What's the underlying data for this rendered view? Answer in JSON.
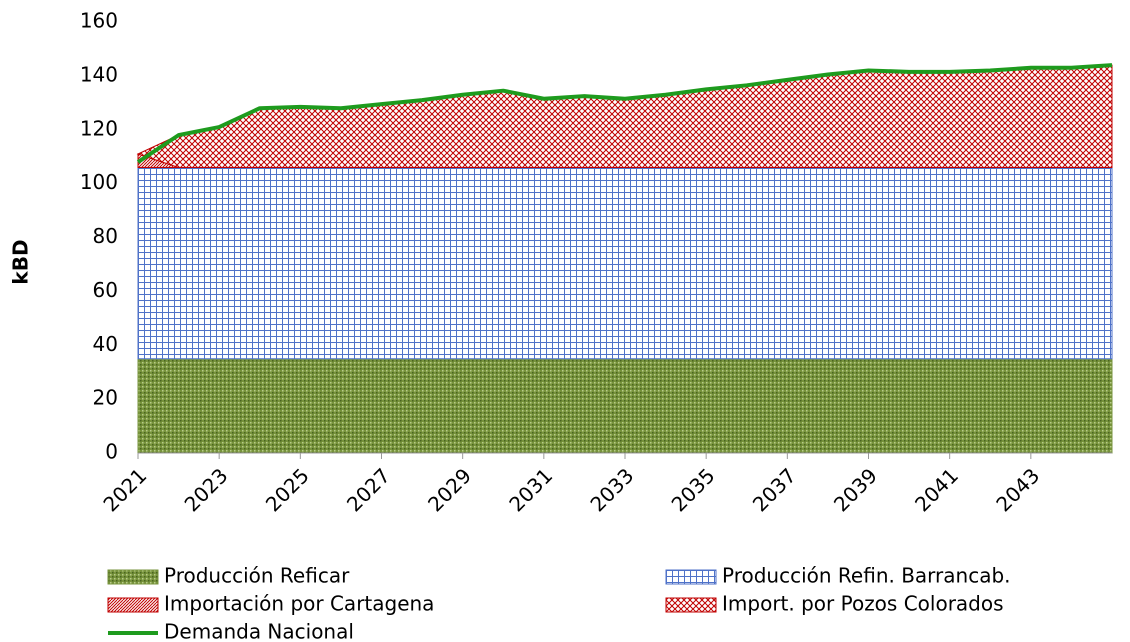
{
  "chart_data": {
    "type": "area",
    "stacked": true,
    "ylabel": "kBD",
    "x": [
      2021,
      2022,
      2023,
      2024,
      2025,
      2026,
      2027,
      2028,
      2029,
      2030,
      2031,
      2032,
      2033,
      2034,
      2035,
      2036,
      2037,
      2038,
      2039,
      2040,
      2041,
      2042,
      2043,
      2044,
      2045
    ],
    "xlim": [
      2021,
      2045
    ],
    "xticks": [
      2021,
      2023,
      2025,
      2027,
      2029,
      2031,
      2033,
      2035,
      2037,
      2039,
      2041,
      2043
    ],
    "ylim": [
      0,
      160
    ],
    "yticks": [
      0,
      20,
      40,
      60,
      80,
      100,
      120,
      140,
      160
    ],
    "grid": false,
    "legend": "bottom",
    "series": [
      {
        "name": "Producción Reficar",
        "color": "#77933c",
        "type": "area",
        "values": [
          35,
          35,
          35,
          35,
          35,
          35,
          35,
          35,
          35,
          35,
          35,
          35,
          35,
          35,
          35,
          35,
          35,
          35,
          35,
          35,
          35,
          35,
          35,
          35,
          35
        ]
      },
      {
        "name": "Producción Refin. Barrancab.",
        "color": "#4f72c8",
        "type": "area",
        "values": [
          71,
          71,
          71,
          71,
          71,
          71,
          71,
          71,
          71,
          71,
          71,
          71,
          71,
          71,
          71,
          71,
          71,
          71,
          71,
          71,
          71,
          71,
          71,
          71,
          71
        ]
      },
      {
        "name": "Importación por Cartagena",
        "color": "#c00000",
        "type": "area",
        "values": [
          5,
          0,
          0,
          0,
          0,
          0,
          0,
          0,
          0,
          0,
          0,
          0,
          0,
          0,
          0,
          0,
          0,
          0,
          0,
          0,
          0,
          0,
          0,
          0,
          0
        ]
      },
      {
        "name": "Import. por Pozos Colorados",
        "color": "#c00000",
        "type": "area",
        "values": [
          0,
          12,
          15,
          22,
          22.5,
          22,
          23.5,
          25,
          27,
          28.5,
          25.5,
          26.5,
          25.5,
          27,
          29,
          30.5,
          32.5,
          34.5,
          36,
          35.5,
          35.5,
          36,
          37,
          37,
          38
        ]
      },
      {
        "name": "Demanda Nacional",
        "color": "#1e9b1e",
        "type": "line",
        "values": [
          108,
          118,
          121,
          128,
          128.5,
          128,
          129.5,
          131,
          133,
          134.5,
          131.5,
          132.5,
          131.5,
          133,
          135,
          136.5,
          138.5,
          140.5,
          142,
          141.5,
          141.5,
          142,
          143,
          143,
          144
        ]
      }
    ]
  }
}
